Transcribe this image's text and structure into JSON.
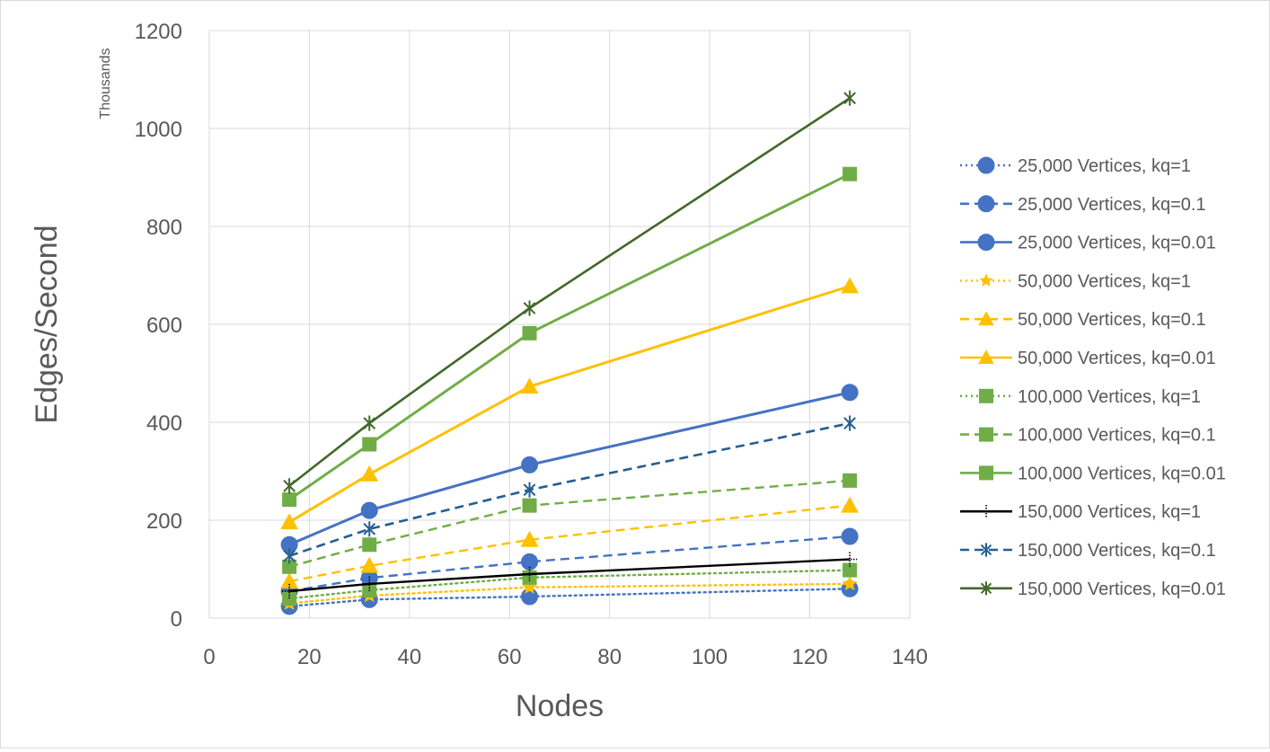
{
  "chart_data": {
    "type": "scatter",
    "title": "",
    "xlabel": "Nodes",
    "ylabel": "Edges/Second",
    "y_unit_label": "Thousands",
    "xlim": [
      0,
      140
    ],
    "ylim": [
      0,
      1200
    ],
    "x_ticks": [
      0,
      20,
      40,
      60,
      80,
      100,
      120,
      140
    ],
    "y_ticks": [
      0,
      200,
      400,
      600,
      800,
      1000,
      1200
    ],
    "x_tick_labels": [
      "0",
      "20",
      "40",
      "60",
      "80",
      "100",
      "120",
      "140"
    ],
    "y_tick_labels": [
      "0",
      "200",
      "400",
      "600",
      "800",
      "1000",
      "1200"
    ],
    "grid": true,
    "legend_position": "right",
    "x": [
      16,
      32,
      64,
      128
    ],
    "series": [
      {
        "name": "25,000 Vertices, kq=1",
        "values": [
          24,
          38,
          44,
          60
        ],
        "color": "#4472c4",
        "dash": "dot",
        "marker": "circle"
      },
      {
        "name": "25,000 Vertices, kq=0.1",
        "values": [
          55,
          82,
          115,
          167
        ],
        "color": "#4472c4",
        "dash": "dash",
        "marker": "circle"
      },
      {
        "name": "25,000 Vertices, kq=0.01",
        "values": [
          150,
          220,
          313,
          461
        ],
        "color": "#4472c4",
        "dash": "solid",
        "marker": "circle"
      },
      {
        "name": "50,000 Vertices, kq=1",
        "values": [
          30,
          46,
          63,
          70
        ],
        "color": "#ffc000",
        "dash": "dot",
        "marker": "star"
      },
      {
        "name": "50,000 Vertices, kq=0.1",
        "values": [
          75,
          107,
          160,
          230
        ],
        "color": "#ffc000",
        "dash": "dash",
        "marker": "triangle"
      },
      {
        "name": "50,000 Vertices, kq=0.01",
        "values": [
          196,
          294,
          473,
          678
        ],
        "color": "#ffc000",
        "dash": "solid",
        "marker": "triangle"
      },
      {
        "name": "100,000 Vertices, kq=1",
        "values": [
          40,
          57,
          83,
          98
        ],
        "color": "#70ad47",
        "dash": "dot",
        "marker": "square"
      },
      {
        "name": "100,000 Vertices, kq=0.1",
        "values": [
          105,
          150,
          230,
          281
        ],
        "color": "#70ad47",
        "dash": "dash",
        "marker": "square"
      },
      {
        "name": "100,000 Vertices, kq=0.01",
        "values": [
          242,
          355,
          582,
          907
        ],
        "color": "#70ad47",
        "dash": "solid",
        "marker": "square"
      },
      {
        "name": "150,000 Vertices, kq=1",
        "values": [
          55,
          70,
          90,
          120
        ],
        "color": "#000000",
        "dash": "solid",
        "marker": "plus"
      },
      {
        "name": "150,000 Vertices, kq=0.1",
        "values": [
          127,
          182,
          262,
          398
        ],
        "color": "#255e91",
        "dash": "dash",
        "marker": "asterisk"
      },
      {
        "name": "150,000 Vertices, kq=0.01",
        "values": [
          270,
          398,
          633,
          1062
        ],
        "color": "#43682b",
        "dash": "solid",
        "marker": "asterisk"
      }
    ]
  }
}
